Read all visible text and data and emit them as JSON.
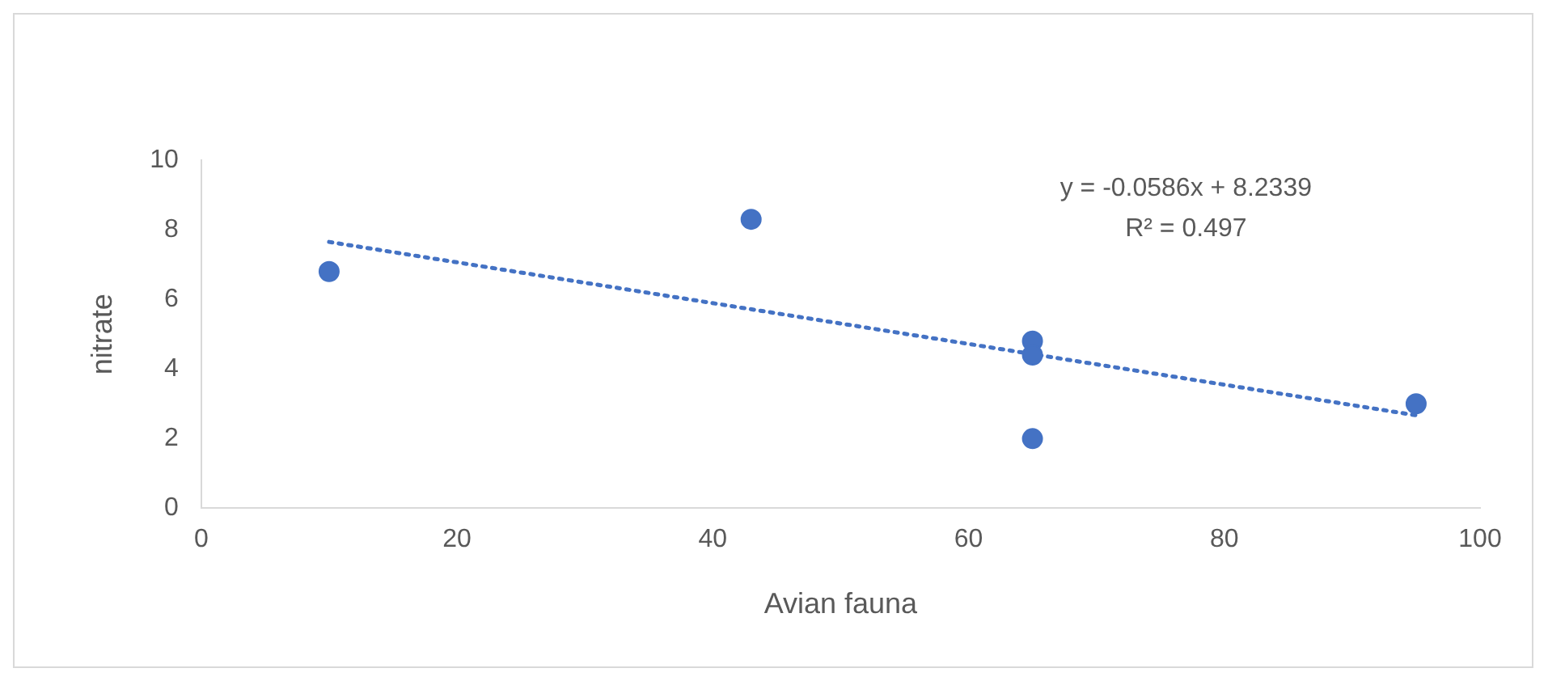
{
  "chart_data": {
    "type": "scatter",
    "xlabel": "Avian fauna",
    "ylabel": "nitrate",
    "x": [
      10,
      43,
      65,
      65,
      65,
      95
    ],
    "series": [
      {
        "color": "#4472c4",
        "values": [
          6.8,
          8.3,
          4.8,
          4.4,
          2,
          3
        ],
        "marker": "circle"
      },
      {
        "type": "line",
        "color": "#4472c4",
        "x": [
          10,
          95
        ],
        "values": [
          7.65,
          2.67
        ],
        "line_style": "dotted",
        "marker": "none"
      }
    ],
    "annotations": [
      "y = -0.0586x + 8.2339",
      "R² = 0.497"
    ],
    "xlim": [
      0,
      100
    ],
    "xticks": [
      0,
      20,
      40,
      60,
      80,
      100
    ],
    "ylim": [
      0,
      10
    ],
    "yticks": [
      0,
      2,
      4,
      6,
      8,
      10
    ],
    "grid": false,
    "legend": false
  }
}
